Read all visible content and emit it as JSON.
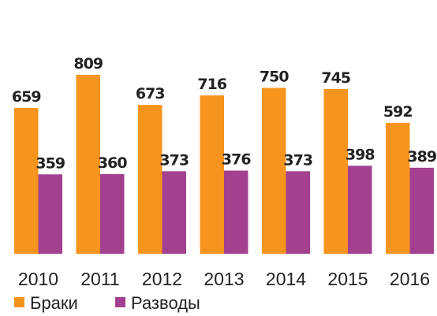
{
  "chart_data": {
    "type": "bar",
    "categories": [
      "2010",
      "2011",
      "2012",
      "2013",
      "2014",
      "2015",
      "2016"
    ],
    "series": [
      {
        "name": "Браки",
        "color": "#f7941d",
        "values": [
          659,
          809,
          673,
          716,
          750,
          745,
          592
        ]
      },
      {
        "name": "Разводы",
        "color": "#a3408f",
        "values": [
          359,
          360,
          373,
          376,
          373,
          398,
          389
        ]
      }
    ],
    "legend": "bottom-left"
  }
}
